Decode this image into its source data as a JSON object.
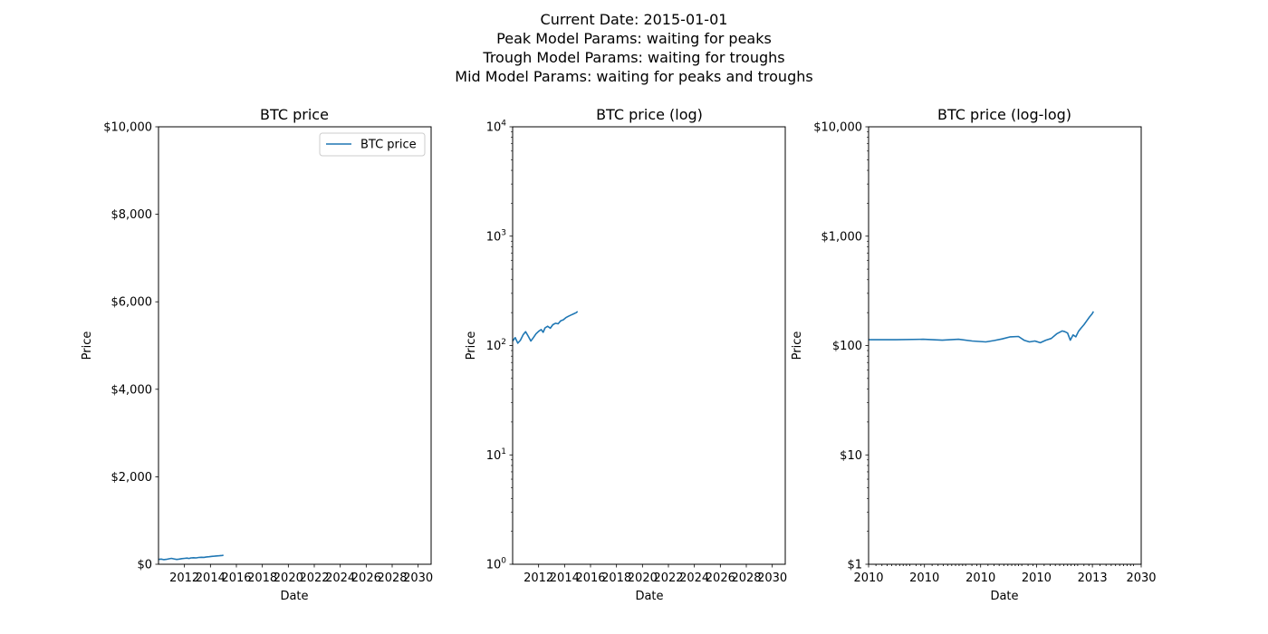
{
  "figure": {
    "suptitle_lines": [
      "Current Date: 2015-01-01",
      "Peak Model Params: waiting for peaks",
      "Trough Model Params: waiting for troughs",
      "Mid Model Params: waiting for peaks and troughs"
    ]
  },
  "chart_data": [
    {
      "type": "line",
      "title": "BTC price",
      "xlabel": "Date",
      "ylabel": "Price",
      "y_scale": "linear",
      "x_scale": "linear",
      "xlim": [
        2010.0,
        2031.0
      ],
      "ylim": [
        0,
        10000
      ],
      "x_ticks": [
        2012,
        2014,
        2016,
        2018,
        2020,
        2022,
        2024,
        2026,
        2028,
        2030
      ],
      "x_tick_labels": [
        "2012",
        "2014",
        "2016",
        "2018",
        "2020",
        "2022",
        "2024",
        "2026",
        "2028",
        "2030"
      ],
      "y_ticks": [
        0,
        2000,
        4000,
        6000,
        8000,
        10000
      ],
      "y_tick_labels": [
        "$0",
        "$2,000",
        "$4,000",
        "$6,000",
        "$8,000",
        "$10,000"
      ],
      "legend": {
        "entries": [
          "BTC price"
        ],
        "placement": "upper-right"
      },
      "grid": false,
      "series": [
        {
          "name": "BTC price",
          "color": "#1f77b4",
          "x": [
            2010.0,
            2010.2,
            2010.4,
            2010.6,
            2010.8,
            2011.0,
            2011.2,
            2011.4,
            2011.6,
            2011.8,
            2012.0,
            2012.2,
            2012.35,
            2012.5,
            2012.7,
            2012.9,
            2013.1,
            2013.3,
            2013.5,
            2013.7,
            2013.9,
            2014.1,
            2014.3,
            2014.5,
            2014.7,
            2014.9,
            2015.0
          ],
          "y": [
            110,
            118,
            105,
            112,
            125,
            134,
            122,
            110,
            118,
            128,
            135,
            140,
            132,
            145,
            150,
            144,
            155,
            160,
            158,
            168,
            172,
            180,
            185,
            190,
            195,
            200,
            205
          ]
        }
      ]
    },
    {
      "type": "line",
      "title": "BTC price (log)",
      "xlabel": "Date",
      "ylabel": "Price",
      "y_scale": "log",
      "x_scale": "linear",
      "xlim": [
        2010.0,
        2031.0
      ],
      "ylim": [
        1,
        10000
      ],
      "x_ticks": [
        2012,
        2014,
        2016,
        2018,
        2020,
        2022,
        2024,
        2026,
        2028,
        2030
      ],
      "x_tick_labels": [
        "2012",
        "2014",
        "2016",
        "2018",
        "2020",
        "2022",
        "2024",
        "2026",
        "2028",
        "2030"
      ],
      "y_ticks": [
        1,
        10,
        100,
        1000,
        10000
      ],
      "y_tick_bases": [
        "10",
        "10",
        "10",
        "10",
        "10"
      ],
      "y_tick_exponents": [
        "0",
        "1",
        "2",
        "3",
        "4"
      ],
      "grid": false,
      "series": [
        {
          "color": "#1f77b4",
          "x": [
            2010.0,
            2010.2,
            2010.4,
            2010.6,
            2010.8,
            2011.0,
            2011.2,
            2011.4,
            2011.6,
            2011.8,
            2012.0,
            2012.2,
            2012.35,
            2012.5,
            2012.7,
            2012.9,
            2013.1,
            2013.3,
            2013.5,
            2013.7,
            2013.9,
            2014.1,
            2014.3,
            2014.5,
            2014.7,
            2014.9,
            2015.0
          ],
          "y": [
            110,
            118,
            105,
            112,
            125,
            134,
            122,
            110,
            118,
            128,
            135,
            140,
            132,
            145,
            150,
            144,
            155,
            160,
            158,
            168,
            172,
            180,
            185,
            190,
            195,
            200,
            205
          ]
        }
      ]
    },
    {
      "type": "line",
      "title": "BTC price (log-log)",
      "xlabel": "Date",
      "ylabel": "Price",
      "y_scale": "log",
      "x_scale": "log",
      "ylim": [
        1,
        10000
      ],
      "x_ticks": [
        0.0,
        0.205,
        0.411,
        0.616,
        0.821,
        1.0
      ],
      "x_tick_labels": [
        "2010",
        "2010",
        "2010",
        "2010",
        "2013",
        "2030"
      ],
      "x_minor_ticks": [
        0.027,
        0.049,
        0.068,
        0.085,
        0.1,
        0.114,
        0.127,
        0.139,
        0.151,
        0.174,
        0.192,
        0.233,
        0.255,
        0.274,
        0.29,
        0.305,
        0.319,
        0.332,
        0.345,
        0.356,
        0.379,
        0.397,
        0.438,
        0.46,
        0.479,
        0.496,
        0.511,
        0.525,
        0.538,
        0.55,
        0.562,
        0.585,
        0.603,
        0.644,
        0.666,
        0.685,
        0.701,
        0.716,
        0.73,
        0.743,
        0.756,
        0.767,
        0.79,
        0.808,
        0.849,
        0.871,
        0.89,
        0.906,
        0.921,
        0.935,
        0.948,
        0.961,
        0.972
      ],
      "y_ticks": [
        1,
        10,
        100,
        1000,
        10000
      ],
      "y_tick_labels": [
        "$1",
        "$10",
        "$100",
        "$1,000",
        "$10,000"
      ],
      "grid": false,
      "series": [
        {
          "color": "#1f77b4",
          "x": [
            0.0,
            0.1,
            0.2,
            0.27,
            0.33,
            0.38,
            0.43,
            0.46,
            0.49,
            0.52,
            0.55,
            0.57,
            0.59,
            0.61,
            0.63,
            0.65,
            0.67,
            0.69,
            0.71,
            0.72,
            0.73,
            0.74,
            0.75,
            0.76,
            0.77,
            0.78,
            0.79,
            0.8,
            0.81,
            0.82,
            0.825
          ],
          "y": [
            113,
            113,
            114,
            112,
            114,
            110,
            108,
            111,
            115,
            120,
            121,
            112,
            108,
            110,
            106,
            112,
            116,
            128,
            136,
            134,
            130,
            112,
            125,
            120,
            135,
            145,
            155,
            168,
            182,
            195,
            205
          ]
        }
      ]
    }
  ]
}
